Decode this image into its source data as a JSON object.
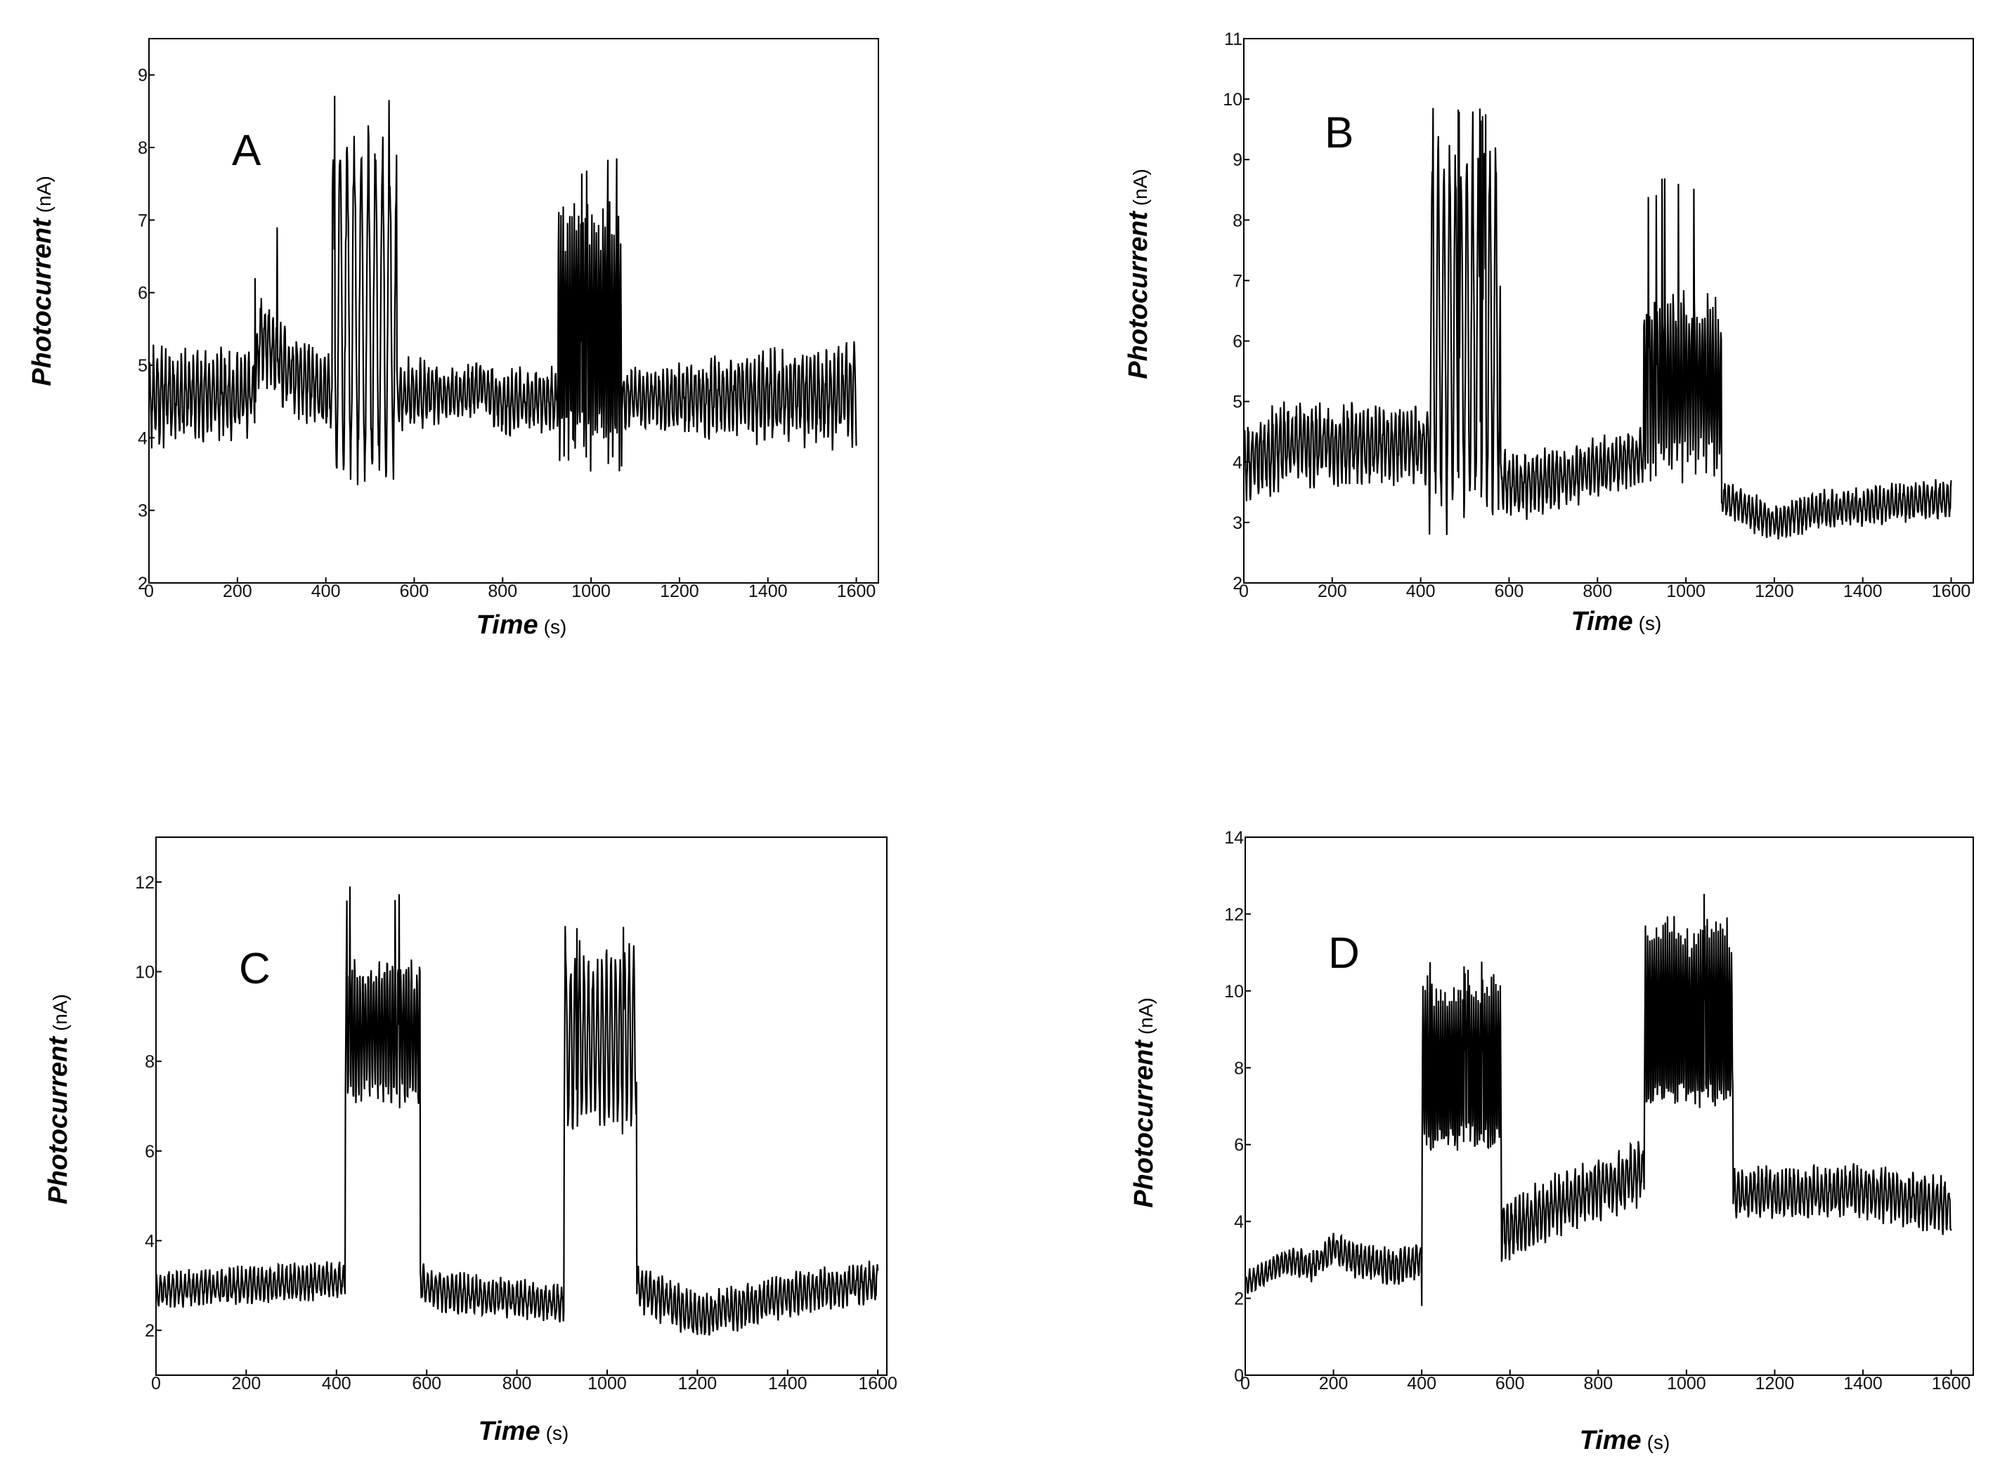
{
  "chart_data": [
    {
      "panel": "A",
      "type": "line",
      "xlabel": "Time",
      "xunit": "(s)",
      "ylabel": "Photocurrent",
      "yunit": "(nA)",
      "xlim": [
        0,
        1650
      ],
      "ylim": [
        2,
        9.5
      ],
      "xticks": [
        0,
        200,
        400,
        600,
        800,
        1000,
        1200,
        1400,
        1600
      ],
      "yticks": [
        2,
        3,
        4,
        5,
        6,
        7,
        8,
        9
      ],
      "baseline_segments": [
        [
          0,
          4.6
        ],
        [
          240,
          4.6
        ],
        [
          250,
          5.4
        ],
        [
          300,
          5.0
        ],
        [
          400,
          4.6
        ],
        [
          700,
          4.6
        ],
        [
          750,
          4.7
        ],
        [
          800,
          4.5
        ],
        [
          1600,
          4.6
        ]
      ],
      "noise_segments": [
        [
          0,
          0.8
        ],
        [
          200,
          0.65
        ],
        [
          600,
          0.55
        ],
        [
          700,
          0.35
        ],
        [
          800,
          0.5
        ],
        [
          1100,
          0.45
        ],
        [
          1400,
          0.7
        ],
        [
          1600,
          0.8
        ]
      ],
      "spikes": [
        [
          290,
          6.9
        ],
        [
          240,
          6.2
        ]
      ],
      "bursts": [
        {
          "start": 415,
          "end": 560,
          "high": 8.2,
          "low": 3.3,
          "peak": 8.8,
          "period": 16
        },
        {
          "start": 925,
          "end": 1070,
          "high": 7.2,
          "low": 3.6,
          "peak": 8.0,
          "period": 5
        }
      ],
      "xmax": 1600,
      "seed": 11
    },
    {
      "panel": "B",
      "type": "line",
      "xlabel": "Time",
      "xunit": "(s)",
      "ylabel": "Photocurrent",
      "yunit": "(nA)",
      "xlim": [
        0,
        1650
      ],
      "ylim": [
        2,
        11
      ],
      "xticks": [
        0,
        200,
        400,
        600,
        800,
        1000,
        1200,
        1400,
        1600
      ],
      "yticks": [
        2,
        3,
        4,
        5,
        6,
        7,
        8,
        9,
        10,
        11
      ],
      "baseline_segments": [
        [
          0,
          4.0
        ],
        [
          100,
          4.3
        ],
        [
          400,
          4.3
        ],
        [
          420,
          4.3
        ],
        [
          580,
          3.6
        ],
        [
          700,
          3.7
        ],
        [
          900,
          4.1
        ],
        [
          1080,
          3.4
        ],
        [
          1200,
          3.0
        ],
        [
          1300,
          3.2
        ],
        [
          1600,
          3.4
        ]
      ],
      "noise_segments": [
        [
          0,
          0.8
        ],
        [
          400,
          0.7
        ],
        [
          580,
          0.65
        ],
        [
          900,
          0.5
        ],
        [
          1080,
          0.35
        ],
        [
          1600,
          0.35
        ]
      ],
      "spikes": [
        [
          420,
          2.8
        ]
      ],
      "bursts": [
        {
          "start": 420,
          "end": 580,
          "high": 9.3,
          "low": 3.0,
          "peak": 10.0,
          "period": 13
        },
        {
          "start": 905,
          "end": 1080,
          "high": 6.7,
          "low": 3.9,
          "peak": 8.7,
          "period": 6
        }
      ],
      "xmax": 1600,
      "seed": 23
    },
    {
      "panel": "C",
      "type": "line",
      "xlabel": "Time",
      "xunit": "(s)",
      "ylabel": "Photocurrent",
      "yunit": "(nA)",
      "xlim": [
        0,
        1620
      ],
      "ylim": [
        1,
        13
      ],
      "xticks": [
        0,
        200,
        400,
        600,
        800,
        1000,
        1200,
        1400,
        1600
      ],
      "yticks": [
        2,
        4,
        6,
        8,
        10,
        12
      ],
      "baseline_segments": [
        [
          0,
          2.9
        ],
        [
          400,
          3.1
        ],
        [
          420,
          3.1
        ],
        [
          585,
          3.2
        ],
        [
          600,
          2.9
        ],
        [
          905,
          2.6
        ],
        [
          1065,
          3.0
        ],
        [
          1200,
          2.3
        ],
        [
          1400,
          2.8
        ],
        [
          1600,
          3.1
        ]
      ],
      "noise_segments": [
        [
          0,
          0.45
        ],
        [
          585,
          0.5
        ],
        [
          905,
          0.45
        ],
        [
          1065,
          0.6
        ],
        [
          1600,
          0.5
        ]
      ],
      "spikes": [
        [
          430,
          11.9
        ],
        [
          530,
          11.6
        ]
      ],
      "bursts": [
        {
          "start": 420,
          "end": 585,
          "high": 10.3,
          "low": 7.0,
          "peak": 11.9,
          "period": 6
        },
        {
          "start": 905,
          "end": 1065,
          "high": 10.5,
          "low": 6.5,
          "peak": 11.3,
          "period": 10
        }
      ],
      "xmax": 1600,
      "seed": 37
    },
    {
      "panel": "D",
      "type": "line",
      "xlabel": "Time",
      "xunit": "(s)",
      "ylabel": "Photocurrent",
      "yunit": "(nA)",
      "xlim": [
        0,
        1650
      ],
      "ylim": [
        0,
        14
      ],
      "xticks": [
        0,
        200,
        400,
        600,
        800,
        1000,
        1200,
        1400,
        1600
      ],
      "yticks": [
        0,
        2,
        4,
        6,
        8,
        10,
        12,
        14
      ],
      "baseline_segments": [
        [
          0,
          2.4
        ],
        [
          100,
          3.0
        ],
        [
          150,
          2.8
        ],
        [
          200,
          3.3
        ],
        [
          250,
          3.0
        ],
        [
          350,
          2.8
        ],
        [
          395,
          3.0
        ],
        [
          580,
          3.7
        ],
        [
          700,
          4.4
        ],
        [
          905,
          5.3
        ],
        [
          1105,
          4.7
        ],
        [
          1400,
          4.8
        ],
        [
          1600,
          4.4
        ]
      ],
      "noise_segments": [
        [
          0,
          0.35
        ],
        [
          400,
          0.6
        ],
        [
          580,
          0.9
        ],
        [
          905,
          0.9
        ],
        [
          1105,
          0.75
        ],
        [
          1600,
          0.8
        ]
      ],
      "spikes": [
        [
          400,
          1.8
        ]
      ],
      "bursts": [
        {
          "start": 400,
          "end": 580,
          "high": 10.3,
          "low": 5.5,
          "peak": 10.8,
          "period": 5
        },
        {
          "start": 905,
          "end": 1105,
          "high": 11.8,
          "low": 6.7,
          "peak": 12.7,
          "period": 5
        }
      ],
      "xmax": 1600,
      "seed": 53
    }
  ]
}
